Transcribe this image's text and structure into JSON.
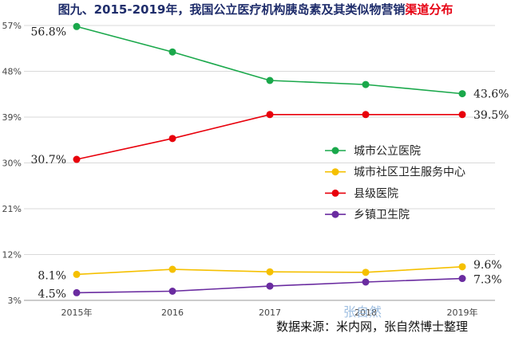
{
  "title_prefix": "图九、2015-2019年，我国公立医疗机构胰岛素及其类似物营销",
  "title_highlight": "渠道分布",
  "colors": {
    "title": "#1f2d6b",
    "highlight": "#e60012",
    "grid": "#d9d9d9",
    "axis": "#999999"
  },
  "chart_data": {
    "type": "line",
    "categories": [
      "2015年",
      "2016",
      "2017",
      "2018",
      "2019年"
    ],
    "y_ticks": [
      "3%",
      "12%",
      "21%",
      "30%",
      "39%",
      "48%",
      "57%"
    ],
    "ylim": [
      3,
      57
    ],
    "grid": true,
    "legend_position": "right",
    "series": [
      {
        "name": "城市公立医院",
        "color": "#1aa84b",
        "values": [
          56.8,
          51.8,
          46.2,
          45.4,
          43.6
        ],
        "labels": [
          "56.8%",
          "",
          "",
          "",
          "43.6%"
        ]
      },
      {
        "name": "城市社区卫生服务中心",
        "color": "#f5c000",
        "values": [
          8.1,
          9.1,
          8.6,
          8.5,
          9.6
        ],
        "labels": [
          "8.1%",
          "",
          "",
          "",
          "9.6%"
        ]
      },
      {
        "name": "县级医院",
        "color": "#e8000b",
        "values": [
          30.7,
          34.8,
          39.5,
          39.5,
          39.5
        ],
        "labels": [
          "30.7%",
          "",
          "",
          "",
          "39.5%"
        ]
      },
      {
        "name": "乡镇卫生院",
        "color": "#6a2ca0",
        "values": [
          4.5,
          4.8,
          5.8,
          6.6,
          7.3
        ],
        "labels": [
          "4.5%",
          "",
          "",
          "",
          "7.3%"
        ]
      }
    ]
  },
  "footer": {
    "source": "数据来源：米内网，张自然博士整理",
    "watermark": "张自然"
  }
}
